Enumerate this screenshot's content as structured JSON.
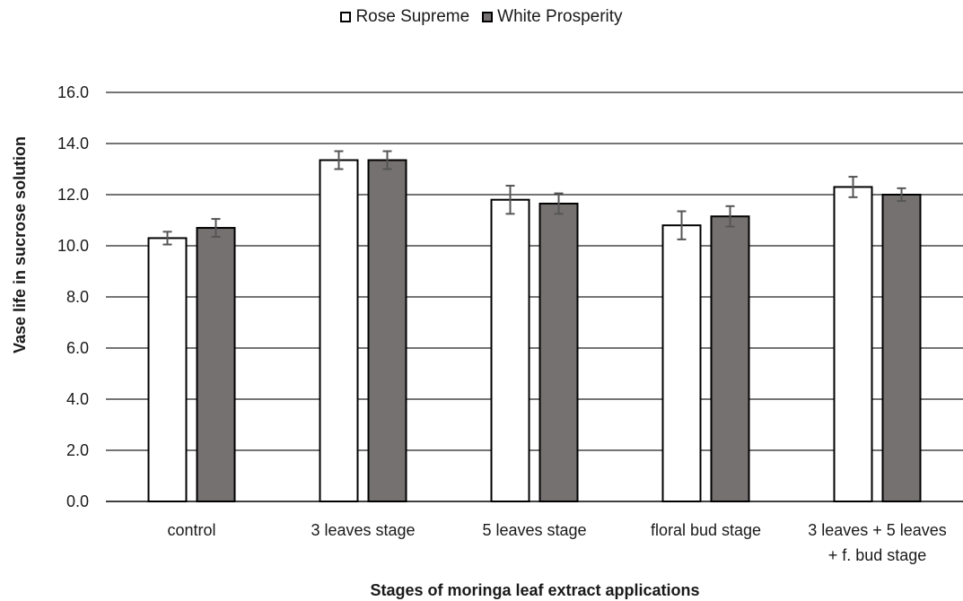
{
  "chart_data": {
    "type": "bar",
    "title": "",
    "xlabel": "Stages of moringa leaf extract applications",
    "ylabel": "Vase life in sucrose solution",
    "ylim": [
      0,
      16
    ],
    "ytick_step": 2,
    "ytick_labels": [
      "0.0",
      "2.0",
      "4.0",
      "6.0",
      "8.0",
      "10.0",
      "12.0",
      "14.0",
      "16.0"
    ],
    "grid": true,
    "legend_position": "top-center",
    "categories": [
      [
        "control"
      ],
      [
        "3 leaves stage"
      ],
      [
        "5 leaves stage"
      ],
      [
        "floral bud stage"
      ],
      [
        "3 leaves + 5 leaves",
        "+ f. bud stage"
      ]
    ],
    "series": [
      {
        "name": "Rose Supreme",
        "color": "#ffffff",
        "values": [
          10.3,
          13.35,
          11.8,
          10.8,
          12.3
        ],
        "errors": [
          0.25,
          0.35,
          0.55,
          0.55,
          0.4
        ]
      },
      {
        "name": "White Prosperity",
        "color": "#767171",
        "values": [
          10.7,
          13.35,
          11.65,
          11.15,
          12.0
        ],
        "errors": [
          0.35,
          0.35,
          0.4,
          0.4,
          0.25
        ]
      }
    ]
  }
}
